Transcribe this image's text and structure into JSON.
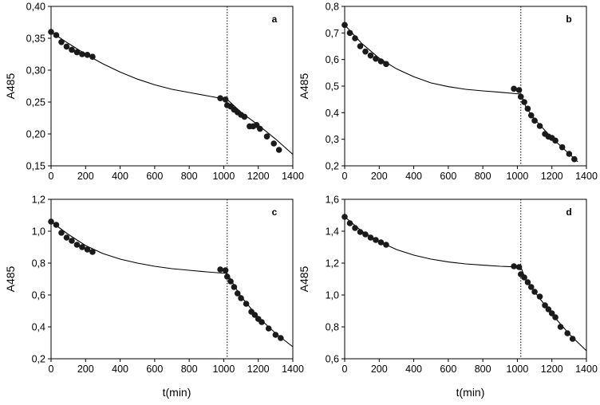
{
  "figure": {
    "background": "#ffffff",
    "marker_color": "#1a1a1a",
    "line_color": "#000000"
  },
  "chart_data": [
    {
      "type": "scatter",
      "label": "a",
      "xlabel": "",
      "ylabel": "A485",
      "xlim": [
        0,
        1400
      ],
      "ylim": [
        0.15,
        0.4
      ],
      "xticks": [
        0,
        200,
        400,
        600,
        800,
        1000,
        1200,
        1400
      ],
      "xtick_labels": [
        "0",
        "200",
        "400",
        "600",
        "800",
        "1000",
        "1200",
        "1400"
      ],
      "yticks": [
        0.15,
        0.2,
        0.25,
        0.3,
        0.35,
        0.4
      ],
      "ytick_labels": [
        "0,15",
        "0,20",
        "0,25",
        "0,30",
        "0,35",
        "0,40"
      ],
      "vline_x": 1020,
      "points": [
        [
          0,
          0.36
        ],
        [
          30,
          0.355
        ],
        [
          60,
          0.344
        ],
        [
          90,
          0.337
        ],
        [
          120,
          0.332
        ],
        [
          150,
          0.328
        ],
        [
          180,
          0.325
        ],
        [
          210,
          0.324
        ],
        [
          240,
          0.321
        ],
        [
          980,
          0.256
        ],
        [
          1010,
          0.254
        ],
        [
          1020,
          0.245
        ],
        [
          1040,
          0.243
        ],
        [
          1060,
          0.238
        ],
        [
          1080,
          0.234
        ],
        [
          1100,
          0.23
        ],
        [
          1120,
          0.227
        ],
        [
          1150,
          0.212
        ],
        [
          1170,
          0.212
        ],
        [
          1190,
          0.214
        ],
        [
          1210,
          0.208
        ],
        [
          1250,
          0.196
        ],
        [
          1290,
          0.185
        ],
        [
          1320,
          0.175
        ]
      ],
      "fit_segments": [
        [
          [
            0,
            0.36
          ],
          [
            100,
            0.342
          ],
          [
            200,
            0.325
          ],
          [
            300,
            0.31
          ],
          [
            400,
            0.297
          ],
          [
            500,
            0.286
          ],
          [
            600,
            0.277
          ],
          [
            700,
            0.27
          ],
          [
            800,
            0.265
          ],
          [
            900,
            0.26
          ],
          [
            1020,
            0.254
          ]
        ],
        [
          [
            1020,
            0.254
          ],
          [
            1100,
            0.234
          ],
          [
            1200,
            0.214
          ],
          [
            1300,
            0.192
          ],
          [
            1400,
            0.168
          ]
        ]
      ]
    },
    {
      "type": "scatter",
      "label": "b",
      "xlabel": "",
      "ylabel": "A485",
      "xlim": [
        0,
        1400
      ],
      "ylim": [
        0.2,
        0.8
      ],
      "xticks": [
        0,
        200,
        400,
        600,
        800,
        1000,
        1200,
        1400
      ],
      "xtick_labels": [
        "0",
        "200",
        "400",
        "600",
        "800",
        "1000",
        "1200",
        "1400"
      ],
      "yticks": [
        0.2,
        0.3,
        0.4,
        0.5,
        0.6,
        0.7,
        0.8
      ],
      "ytick_labels": [
        "0,2",
        "0,3",
        "0,4",
        "0,5",
        "0,6",
        "0,7",
        "0,8"
      ],
      "vline_x": 1020,
      "points": [
        [
          0,
          0.73
        ],
        [
          30,
          0.7
        ],
        [
          60,
          0.68
        ],
        [
          90,
          0.65
        ],
        [
          120,
          0.63
        ],
        [
          150,
          0.615
        ],
        [
          180,
          0.603
        ],
        [
          210,
          0.593
        ],
        [
          240,
          0.583
        ],
        [
          980,
          0.49
        ],
        [
          1010,
          0.485
        ],
        [
          1020,
          0.46
        ],
        [
          1040,
          0.44
        ],
        [
          1060,
          0.415
        ],
        [
          1080,
          0.39
        ],
        [
          1100,
          0.37
        ],
        [
          1130,
          0.35
        ],
        [
          1160,
          0.32
        ],
        [
          1180,
          0.31
        ],
        [
          1200,
          0.305
        ],
        [
          1220,
          0.295
        ],
        [
          1260,
          0.27
        ],
        [
          1300,
          0.245
        ],
        [
          1330,
          0.225
        ]
      ],
      "fit_segments": [
        [
          [
            0,
            0.73
          ],
          [
            100,
            0.66
          ],
          [
            200,
            0.605
          ],
          [
            300,
            0.565
          ],
          [
            400,
            0.535
          ],
          [
            500,
            0.512
          ],
          [
            600,
            0.498
          ],
          [
            700,
            0.488
          ],
          [
            800,
            0.482
          ],
          [
            900,
            0.477
          ],
          [
            1020,
            0.47
          ]
        ],
        [
          [
            1020,
            0.47
          ],
          [
            1050,
            0.42
          ],
          [
            1100,
            0.375
          ],
          [
            1200,
            0.305
          ],
          [
            1300,
            0.245
          ],
          [
            1350,
            0.215
          ]
        ]
      ]
    },
    {
      "type": "scatter",
      "label": "c",
      "xlabel": "t(min)",
      "ylabel": "A485",
      "xlim": [
        0,
        1400
      ],
      "ylim": [
        0.2,
        1.2
      ],
      "xticks": [
        0,
        200,
        400,
        600,
        800,
        1000,
        1200,
        1400
      ],
      "xtick_labels": [
        "0",
        "200",
        "400",
        "600",
        "800",
        "1000",
        "1200",
        "1400"
      ],
      "yticks": [
        0.2,
        0.4,
        0.6,
        0.8,
        1.0,
        1.2
      ],
      "ytick_labels": [
        "0,2",
        "0,4",
        "0,6",
        "0,8",
        "1,0",
        "1,2"
      ],
      "vline_x": 1020,
      "points": [
        [
          0,
          1.06
        ],
        [
          30,
          1.04
        ],
        [
          60,
          0.99
        ],
        [
          90,
          0.96
        ],
        [
          120,
          0.94
        ],
        [
          150,
          0.915
        ],
        [
          180,
          0.9
        ],
        [
          210,
          0.885
        ],
        [
          240,
          0.87
        ],
        [
          980,
          0.76
        ],
        [
          1010,
          0.755
        ],
        [
          1020,
          0.715
        ],
        [
          1040,
          0.685
        ],
        [
          1060,
          0.65
        ],
        [
          1080,
          0.61
        ],
        [
          1100,
          0.58
        ],
        [
          1130,
          0.545
        ],
        [
          1160,
          0.495
        ],
        [
          1180,
          0.475
        ],
        [
          1200,
          0.45
        ],
        [
          1220,
          0.43
        ],
        [
          1260,
          0.39
        ],
        [
          1300,
          0.35
        ],
        [
          1330,
          0.33
        ]
      ],
      "fit_segments": [
        [
          [
            0,
            1.06
          ],
          [
            100,
            0.98
          ],
          [
            200,
            0.91
          ],
          [
            300,
            0.86
          ],
          [
            400,
            0.825
          ],
          [
            500,
            0.8
          ],
          [
            600,
            0.78
          ],
          [
            700,
            0.765
          ],
          [
            800,
            0.755
          ],
          [
            900,
            0.745
          ],
          [
            1020,
            0.735
          ]
        ],
        [
          [
            1020,
            0.735
          ],
          [
            1060,
            0.66
          ],
          [
            1100,
            0.59
          ],
          [
            1200,
            0.46
          ],
          [
            1300,
            0.36
          ],
          [
            1400,
            0.275
          ]
        ]
      ]
    },
    {
      "type": "scatter",
      "label": "d",
      "xlabel": "t(min)",
      "ylabel": "A485",
      "xlim": [
        0,
        1400
      ],
      "ylim": [
        0.6,
        1.6
      ],
      "xticks": [
        0,
        200,
        400,
        600,
        800,
        1000,
        1200,
        1400
      ],
      "xtick_labels": [
        "0",
        "200",
        "400",
        "600",
        "800",
        "1000",
        "1200",
        "1400"
      ],
      "yticks": [
        0.6,
        0.8,
        1.0,
        1.2,
        1.4,
        1.6
      ],
      "ytick_labels": [
        "0,6",
        "0,8",
        "1,0",
        "1,2",
        "1,4",
        "1,6"
      ],
      "vline_x": 1020,
      "points": [
        [
          0,
          1.49
        ],
        [
          30,
          1.45
        ],
        [
          60,
          1.42
        ],
        [
          90,
          1.395
        ],
        [
          120,
          1.38
        ],
        [
          150,
          1.36
        ],
        [
          180,
          1.345
        ],
        [
          210,
          1.33
        ],
        [
          240,
          1.315
        ],
        [
          980,
          1.18
        ],
        [
          1010,
          1.175
        ],
        [
          1020,
          1.13
        ],
        [
          1040,
          1.11
        ],
        [
          1060,
          1.08
        ],
        [
          1080,
          1.05
        ],
        [
          1100,
          1.02
        ],
        [
          1130,
          0.99
        ],
        [
          1160,
          0.935
        ],
        [
          1180,
          0.91
        ],
        [
          1200,
          0.885
        ],
        [
          1220,
          0.86
        ],
        [
          1250,
          0.8
        ],
        [
          1290,
          0.76
        ],
        [
          1320,
          0.725
        ]
      ],
      "fit_segments": [
        [
          [
            0,
            1.49
          ],
          [
            100,
            1.4
          ],
          [
            200,
            1.335
          ],
          [
            300,
            1.285
          ],
          [
            400,
            1.25
          ],
          [
            500,
            1.225
          ],
          [
            600,
            1.207
          ],
          [
            700,
            1.195
          ],
          [
            800,
            1.187
          ],
          [
            900,
            1.18
          ],
          [
            1020,
            1.175
          ]
        ],
        [
          [
            1020,
            1.175
          ],
          [
            1050,
            1.09
          ],
          [
            1100,
            1.02
          ],
          [
            1200,
            0.88
          ],
          [
            1300,
            0.755
          ],
          [
            1400,
            0.65
          ]
        ]
      ]
    }
  ]
}
